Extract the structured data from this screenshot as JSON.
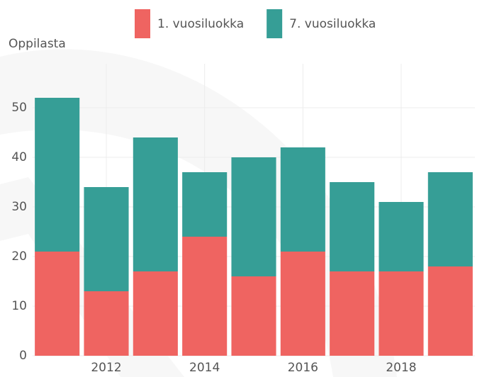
{
  "chart_data": {
    "type": "bar",
    "stacked": true,
    "ylabel": "Oppilasta",
    "categories": [
      null,
      "2012",
      null,
      "2014",
      null,
      "2016",
      null,
      "2018",
      null
    ],
    "series": [
      {
        "name": "1. vuosiluokka",
        "color": "#ef6461",
        "values": [
          21,
          13,
          17,
          24,
          16,
          21,
          17,
          17,
          18
        ]
      },
      {
        "name": "7. vuosiluokka",
        "color": "#369e96",
        "values": [
          31,
          21,
          27,
          13,
          24,
          21,
          18,
          14,
          19
        ]
      }
    ],
    "ylim": [
      0,
      58
    ],
    "yticks": [
      0,
      10,
      20,
      30,
      40,
      50
    ],
    "grid": true,
    "legend": "top"
  }
}
